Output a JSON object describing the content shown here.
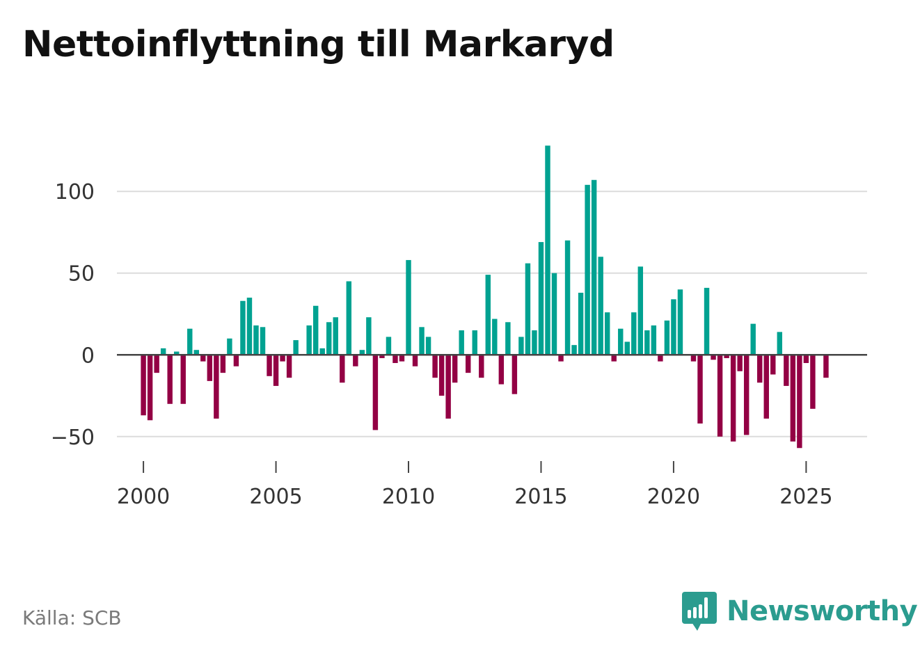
{
  "title": "Nettoinflyttning till Markaryd",
  "source": "Källa: SCB",
  "brand": {
    "name": "Newsworthy",
    "icon": "newsworthy-logo-icon"
  },
  "colors": {
    "positive": "#00a291",
    "negative": "#930044",
    "brand": "#2b9c8f"
  },
  "chart_data": {
    "type": "bar",
    "title": "Nettoinflyttning till Markaryd",
    "xlabel": "",
    "ylabel": "",
    "ylim": [
      -62,
      132
    ],
    "xlim": [
      1999.0,
      2027.3
    ],
    "y_ticks": [
      {
        "value": -50,
        "label": "−50"
      },
      {
        "value": 0,
        "label": "0"
      },
      {
        "value": 50,
        "label": "50"
      },
      {
        "value": 100,
        "label": "100"
      }
    ],
    "x_ticks": [
      {
        "value": 2000,
        "label": "2000"
      },
      {
        "value": 2005,
        "label": "2005"
      },
      {
        "value": 2010,
        "label": "2010"
      },
      {
        "value": 2015,
        "label": "2015"
      },
      {
        "value": 2020,
        "label": "2020"
      },
      {
        "value": 2025,
        "label": "2025"
      }
    ],
    "grid": true,
    "series": [
      {
        "name": "Nettoinflyttning",
        "start_year": 2000,
        "periods_per_year": 4,
        "values": [
          -37,
          -40,
          -11,
          4,
          -30,
          2,
          -30,
          16,
          3,
          -4,
          -16,
          -39,
          -11,
          10,
          -7,
          33,
          35,
          18,
          17,
          -13,
          -19,
          -4,
          -14,
          9,
          0,
          18,
          30,
          4,
          20,
          23,
          -17,
          45,
          -7,
          3,
          23,
          -46,
          -2,
          11,
          -5,
          -4,
          58,
          -7,
          17,
          11,
          -14,
          -25,
          -39,
          -17,
          15,
          -11,
          15,
          -14,
          49,
          22,
          -18,
          20,
          -24,
          11,
          56,
          15,
          69,
          128,
          50,
          -4,
          70,
          6,
          38,
          104,
          107,
          60,
          26,
          -4,
          16,
          8,
          26,
          54,
          15,
          18,
          -4,
          21,
          34,
          40,
          0,
          -4,
          -42,
          41,
          -3,
          -50,
          -2,
          -53,
          -10,
          -49,
          19,
          -17,
          -39,
          -12,
          14,
          -19,
          -53,
          -57,
          -5,
          -33,
          0,
          -14
        ]
      }
    ]
  }
}
